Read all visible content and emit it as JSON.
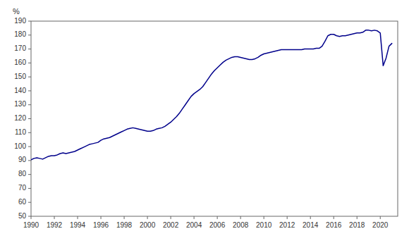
{
  "chart_data": {
    "type": "line",
    "y_label": "%",
    "color": "#00008B",
    "grid": false,
    "xlim": [
      1990.0,
      2021.5
    ],
    "xticks": [
      1990,
      1992,
      1994,
      1996,
      1998,
      2000,
      2002,
      2004,
      2006,
      2008,
      2010,
      2012,
      2014,
      2016,
      2018,
      2020
    ],
    "ylim": [
      50,
      190
    ],
    "yticks": [
      50,
      60,
      70,
      80,
      90,
      100,
      110,
      120,
      130,
      140,
      150,
      160,
      170,
      180,
      190
    ],
    "x": [
      1990.0,
      1990.25,
      1990.5,
      1990.75,
      1991.0,
      1991.25,
      1991.5,
      1991.75,
      1992.0,
      1992.25,
      1992.5,
      1992.75,
      1993.0,
      1993.25,
      1993.5,
      1993.75,
      1994.0,
      1994.25,
      1994.5,
      1994.75,
      1995.0,
      1995.25,
      1995.5,
      1995.75,
      1996.0,
      1996.25,
      1996.5,
      1996.75,
      1997.0,
      1997.25,
      1997.5,
      1997.75,
      1998.0,
      1998.25,
      1998.5,
      1998.75,
      1999.0,
      1999.25,
      1999.5,
      1999.75,
      2000.0,
      2000.25,
      2000.5,
      2000.75,
      2001.0,
      2001.25,
      2001.5,
      2001.75,
      2002.0,
      2002.25,
      2002.5,
      2002.75,
      2003.0,
      2003.25,
      2003.5,
      2003.75,
      2004.0,
      2004.25,
      2004.5,
      2004.75,
      2005.0,
      2005.25,
      2005.5,
      2005.75,
      2006.0,
      2006.25,
      2006.5,
      2006.75,
      2007.0,
      2007.25,
      2007.5,
      2007.75,
      2008.0,
      2008.25,
      2008.5,
      2008.75,
      2009.0,
      2009.25,
      2009.5,
      2009.75,
      2010.0,
      2010.25,
      2010.5,
      2010.75,
      2011.0,
      2011.25,
      2011.5,
      2011.75,
      2012.0,
      2012.25,
      2012.5,
      2012.75,
      2013.0,
      2013.25,
      2013.5,
      2013.75,
      2014.0,
      2014.25,
      2014.5,
      2014.75,
      2015.0,
      2015.25,
      2015.5,
      2015.75,
      2016.0,
      2016.25,
      2016.5,
      2016.75,
      2017.0,
      2017.25,
      2017.5,
      2017.75,
      2018.0,
      2018.25,
      2018.5,
      2018.75,
      2019.0,
      2019.25,
      2019.5,
      2019.75,
      2020.0,
      2020.25,
      2020.5,
      2020.75,
      2021.0
    ],
    "values": [
      90.5,
      91.5,
      92.0,
      91.5,
      91.0,
      92.0,
      93.0,
      93.5,
      93.5,
      94.0,
      95.0,
      95.5,
      95.0,
      95.5,
      96.0,
      96.5,
      97.5,
      98.5,
      99.5,
      100.5,
      101.5,
      102.0,
      102.5,
      103.0,
      104.5,
      105.5,
      106.0,
      106.5,
      107.5,
      108.5,
      109.5,
      110.5,
      111.5,
      112.5,
      113.0,
      113.5,
      113.0,
      112.5,
      112.0,
      111.5,
      111.0,
      111.0,
      111.5,
      112.5,
      113.0,
      113.5,
      114.5,
      116.0,
      117.5,
      119.5,
      121.5,
      124.0,
      127.0,
      130.0,
      133.0,
      136.0,
      138.0,
      139.5,
      141.0,
      143.0,
      146.0,
      149.0,
      152.0,
      154.5,
      156.5,
      158.5,
      160.5,
      162.0,
      163.0,
      164.0,
      164.5,
      164.5,
      164.0,
      163.5,
      163.0,
      162.5,
      162.5,
      163.0,
      164.0,
      165.5,
      166.5,
      167.0,
      167.5,
      168.0,
      168.5,
      169.0,
      169.5,
      169.5,
      169.5,
      169.5,
      169.5,
      169.5,
      169.5,
      169.5,
      170.0,
      170.0,
      170.0,
      170.0,
      170.5,
      170.5,
      172.0,
      175.5,
      179.5,
      180.5,
      180.5,
      179.5,
      179.0,
      179.5,
      179.5,
      180.0,
      180.5,
      181.0,
      181.5,
      181.5,
      182.0,
      183.5,
      183.5,
      183.0,
      183.5,
      183.0,
      181.5,
      158.0,
      163.5,
      172.0,
      174.0
    ]
  }
}
